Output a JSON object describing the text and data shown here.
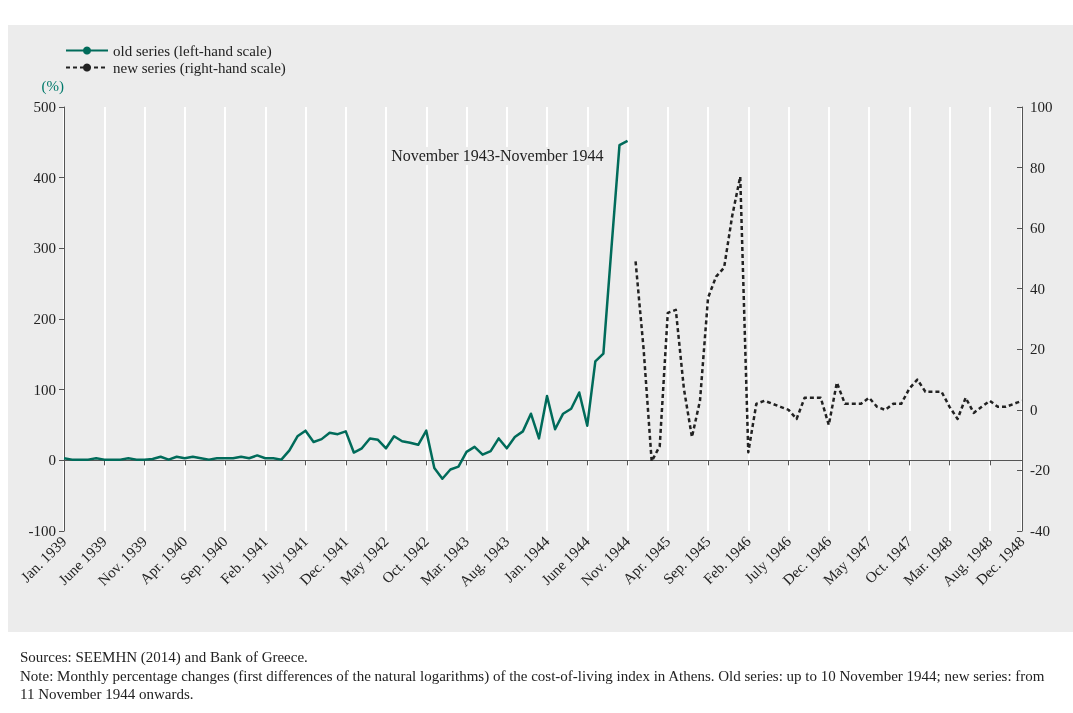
{
  "chart_data": {
    "type": "line",
    "ylabel": "(%)",
    "categories": [
      "Jan. 1939",
      null,
      null,
      null,
      null,
      "June 1939",
      null,
      null,
      null,
      null,
      "Nov. 1939",
      null,
      null,
      null,
      null,
      "Apr. 1940",
      null,
      null,
      null,
      null,
      "Sep. 1940",
      null,
      null,
      null,
      null,
      "Feb. 1941",
      null,
      null,
      null,
      null,
      "July 1941",
      null,
      null,
      null,
      null,
      "Dec. 1941",
      null,
      null,
      null,
      null,
      "May 1942",
      null,
      null,
      null,
      null,
      "Oct. 1942",
      null,
      null,
      null,
      null,
      "Mar. 1943",
      null,
      null,
      null,
      null,
      "Aug. 1943",
      null,
      null,
      null,
      null,
      "Jan. 1944",
      null,
      null,
      null,
      null,
      "June 1944",
      null,
      null,
      null,
      null,
      "Nov. 1944",
      null,
      null,
      null,
      null,
      "Apr. 1945",
      null,
      null,
      null,
      null,
      "Sep. 1945",
      null,
      null,
      null,
      null,
      "Feb. 1946",
      null,
      null,
      null,
      null,
      "July 1946",
      null,
      null,
      null,
      null,
      "Dec. 1946",
      null,
      null,
      null,
      null,
      "May 1947",
      null,
      null,
      null,
      null,
      "Oct. 1947",
      null,
      null,
      null,
      null,
      "Mar. 1948",
      null,
      null,
      null,
      null,
      "Aug. 1948",
      null,
      null,
      null,
      "Dec. 1948"
    ],
    "series": [
      {
        "name": "old series (left-hand scale)",
        "color": "#006b5a",
        "line_style": "solid",
        "values": [
          3,
          1,
          1,
          1,
          3,
          1,
          1,
          1,
          3,
          1,
          1,
          2,
          5,
          1,
          5,
          3,
          5,
          3,
          1,
          3,
          3,
          3,
          5,
          3,
          7,
          3,
          3,
          1,
          14,
          34,
          42,
          26,
          30,
          39,
          37,
          41,
          11,
          17,
          31,
          29,
          17,
          34,
          27,
          25,
          22,
          42,
          -11,
          -26,
          -13,
          -9,
          12,
          19,
          8,
          13,
          31,
          17,
          33,
          41,
          66,
          31,
          91,
          44,
          66,
          73,
          96,
          49,
          140,
          151,
          300,
          446,
          452,
          null,
          null,
          null,
          null,
          null,
          null,
          null,
          null,
          null,
          null,
          null,
          null,
          null,
          null,
          null,
          null,
          null,
          null,
          null,
          null,
          null,
          null,
          null,
          null,
          null,
          null,
          null,
          null,
          null,
          null,
          null,
          null,
          null,
          null,
          null,
          null,
          null,
          null,
          null,
          null,
          null,
          null,
          null,
          null,
          null,
          null,
          null,
          null,
          null
        ]
      },
      {
        "name": "new series (right-hand scale)",
        "color": "#222222",
        "line_style": "dashed",
        "axis": "y2",
        "values": [
          null,
          null,
          null,
          null,
          null,
          null,
          null,
          null,
          null,
          null,
          null,
          null,
          null,
          null,
          null,
          null,
          null,
          null,
          null,
          null,
          null,
          null,
          null,
          null,
          null,
          null,
          null,
          null,
          null,
          null,
          null,
          null,
          null,
          null,
          null,
          null,
          null,
          null,
          null,
          null,
          null,
          null,
          null,
          null,
          null,
          null,
          null,
          null,
          null,
          null,
          null,
          null,
          null,
          null,
          null,
          null,
          null,
          null,
          null,
          null,
          null,
          null,
          null,
          null,
          null,
          null,
          null,
          null,
          null,
          null,
          null,
          49,
          20,
          -17,
          -12,
          32,
          33,
          7,
          -9,
          3,
          37,
          44,
          47,
          64,
          77,
          -14,
          2,
          3,
          2,
          1,
          0,
          -3,
          4,
          4,
          4,
          -5,
          9,
          2,
          2,
          2,
          4,
          1,
          0,
          2,
          2,
          7,
          10,
          6,
          6,
          6,
          1,
          -3,
          4,
          -1,
          1,
          3,
          1,
          1,
          2,
          3
        ]
      }
    ],
    "ylim": [
      -100,
      500
    ],
    "yticks": [
      -100,
      0,
      100,
      200,
      300,
      400,
      500
    ],
    "y2lim": [
      -40,
      100
    ],
    "y2ticks": [
      -40,
      -20,
      0,
      20,
      40,
      60,
      80,
      100
    ],
    "grid": "x",
    "legend": "top left",
    "marker": "none",
    "annotations": [
      {
        "text": "November 1943-November 1944",
        "x": "Nov. 1944",
        "y": 452
      },
      "Sources: SEEMHN (2014) and Bank of Greece.",
      "Note: Monthly percentage changes (first differences of the natural logarithms) of the cost-of-living index in Athens. Old series: up to 10 November 1944; new series: from 11 November 1944 onwards."
    ]
  }
}
